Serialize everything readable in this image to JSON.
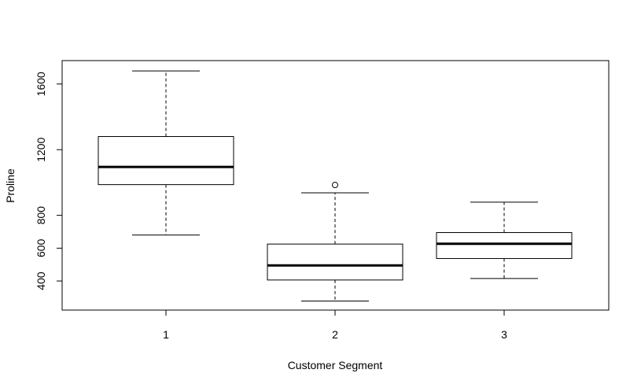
{
  "chart_data": {
    "type": "boxplot",
    "title": "",
    "xlabel": "Customer Segment",
    "ylabel": "Proline",
    "categories": [
      "1",
      "2",
      "3"
    ],
    "ylim": [
      278,
      1680
    ],
    "yticks": [
      400,
      600,
      800,
      1200,
      1600
    ],
    "grid": false,
    "legend": "none",
    "boxes": [
      {
        "label": "1",
        "whisker_low": 680,
        "q1": 987,
        "median": 1095,
        "q3": 1280,
        "whisker_high": 1680,
        "outliers": []
      },
      {
        "label": "2",
        "whisker_low": 278,
        "q1": 406,
        "median": 495,
        "q3": 625,
        "whisker_high": 937,
        "outliers": [
          985
        ]
      },
      {
        "label": "3",
        "whisker_low": 415,
        "q1": 537,
        "median": 627,
        "q3": 695,
        "whisker_high": 880,
        "outliers": []
      }
    ]
  }
}
